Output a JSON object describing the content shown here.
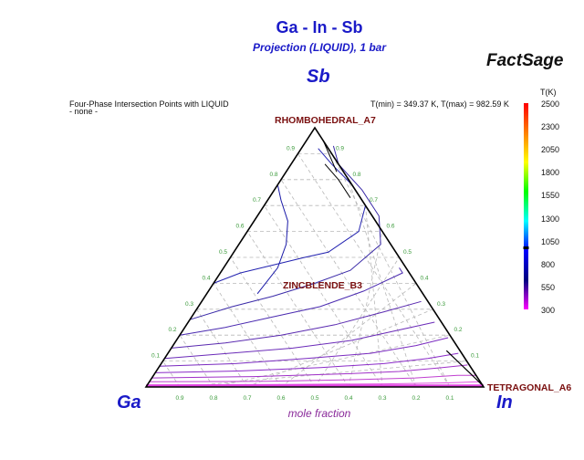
{
  "title": "Ga - In - Sb",
  "subtitle": "Projection (LIQUID), 1 bar",
  "brand": "FactSage",
  "info": {
    "line1": "Four-Phase Intersection Points with LIQUID",
    "line2": "- none -"
  },
  "temperature_range": "T(min) = 349.37 K, T(max) = 982.59 K",
  "components": {
    "top": "Sb",
    "left": "Ga",
    "right": "In"
  },
  "phases": [
    "RHOMBOHEDRAL_A7",
    "ZINCBLENDE_B3",
    "TETRAGONAL_A6"
  ],
  "axis_label": "mole fraction",
  "colorbar": {
    "title": "T(K)",
    "ticks": [
      "2500",
      "2300",
      "2050",
      "1800",
      "1550",
      "1300",
      "1050",
      "800",
      "550",
      "300"
    ],
    "colors": [
      "#ff0000",
      "#ff7f00",
      "#ffff00",
      "#00ff00",
      "#00ffff",
      "#0000ff",
      "#000080",
      "#ff00ff"
    ]
  },
  "chart_data": {
    "type": "ternary",
    "title": "Ga - In - Sb",
    "subtitle": "Projection (LIQUID), 1 bar",
    "components": [
      "Sb",
      "Ga",
      "In"
    ],
    "xlabel": "mole fraction",
    "bottom_ticks": [
      "0.9",
      "0.8",
      "0.7",
      "0.6",
      "0.5",
      "0.4",
      "0.3",
      "0.2",
      "0.1"
    ],
    "left_ticks": [
      "0.9",
      "0.8",
      "0.7",
      "0.6",
      "0.5",
      "0.4",
      "0.3",
      "0.2",
      "0.1"
    ],
    "right_ticks": [
      "0.9",
      "0.8",
      "0.7",
      "0.6",
      "0.5",
      "0.4",
      "0.3",
      "0.2",
      "0.1"
    ],
    "grid": true,
    "t_min_K": 349.37,
    "t_max_K": 982.59,
    "colorbar_range_K": [
      300,
      2500
    ],
    "primary_phase_fields": [
      "RHOMBOHEDRAL_A7",
      "ZINCBLENDE_B3",
      "TETRAGONAL_A6"
    ],
    "isotherm_colors": [
      "#1a1aa8",
      "#2222b0",
      "#3a2aa8",
      "#4a2ab0",
      "#5a2ab0",
      "#6a2ab8",
      "#7a2ac0",
      "#8a2ac8",
      "#a030c8",
      "#c040d0",
      "#e050e0"
    ]
  }
}
